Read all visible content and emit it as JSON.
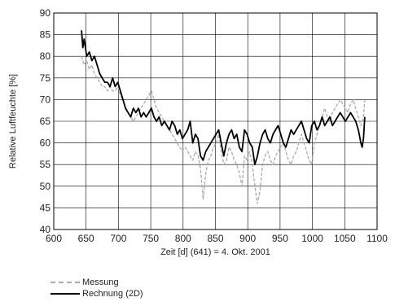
{
  "chart_data": {
    "type": "line",
    "xlabel": "Zeit [d] (641) = 4. Okt. 2001",
    "ylabel": "Relative Luftfeuchte [%]",
    "xlim": [
      600,
      1100
    ],
    "ylim": [
      40,
      90
    ],
    "x_ticks": [
      "600",
      "650",
      "700",
      "750",
      "800",
      "850",
      "900",
      "950",
      "1000",
      "1050",
      "1100"
    ],
    "y_ticks": [
      "40",
      "45",
      "50",
      "55",
      "60",
      "65",
      "70",
      "75",
      "80",
      "85",
      "90"
    ],
    "grid": true,
    "legend_position": "bottom-left",
    "series": [
      {
        "name": "Messung",
        "color": "#aaaaaa",
        "style": "dashed",
        "x": [
          643,
          647,
          651,
          655,
          659,
          663,
          667,
          671,
          675,
          679,
          683,
          687,
          691,
          695,
          699,
          703,
          707,
          711,
          715,
          719,
          723,
          727,
          731,
          735,
          739,
          743,
          747,
          751,
          755,
          759,
          763,
          767,
          771,
          775,
          779,
          783,
          787,
          791,
          795,
          799,
          803,
          807,
          811,
          815,
          819,
          823,
          827,
          831,
          835,
          839,
          843,
          847,
          851,
          855,
          859,
          863,
          867,
          871,
          875,
          879,
          883,
          887,
          891,
          895,
          899,
          903,
          907,
          911,
          915,
          919,
          923,
          927,
          931,
          935,
          939,
          943,
          947,
          951,
          955,
          959,
          963,
          967,
          971,
          975,
          979,
          983,
          987,
          991,
          995,
          999,
          1003,
          1007,
          1011,
          1015,
          1019,
          1023,
          1027,
          1031,
          1035,
          1039,
          1043,
          1047,
          1051,
          1055,
          1059,
          1063,
          1067,
          1071,
          1075,
          1079,
          1081
        ],
        "y": [
          80,
          78,
          79,
          77,
          78,
          76,
          75,
          74,
          73,
          73,
          72,
          73,
          72,
          72,
          73,
          71,
          70,
          68,
          67,
          66,
          65,
          66,
          67,
          68,
          69,
          70,
          71,
          72,
          70,
          68,
          67,
          66,
          65,
          64,
          63,
          62,
          61,
          60,
          59,
          58,
          59,
          58,
          57,
          56,
          58,
          57,
          54,
          47,
          53,
          56,
          57,
          59,
          60,
          62,
          58,
          55,
          56,
          59,
          58,
          56,
          55,
          53,
          50,
          57,
          56,
          58,
          55,
          50,
          46,
          49,
          55,
          57,
          58,
          56,
          55,
          57,
          58,
          59,
          60,
          58,
          56,
          55,
          57,
          58,
          60,
          62,
          60,
          58,
          56,
          55,
          60,
          62,
          64,
          66,
          68,
          66,
          65,
          67,
          68,
          69,
          70,
          69,
          68,
          67,
          69,
          70,
          68,
          66,
          64,
          66,
          70
        ]
      },
      {
        "name": "Rechnung (2D)",
        "color": "#000000",
        "style": "solid",
        "x": [
          643,
          645,
          647,
          651,
          655,
          659,
          663,
          667,
          671,
          675,
          679,
          683,
          687,
          691,
          695,
          699,
          703,
          707,
          711,
          715,
          719,
          723,
          727,
          731,
          735,
          739,
          743,
          747,
          751,
          755,
          759,
          763,
          767,
          771,
          775,
          779,
          783,
          787,
          791,
          795,
          799,
          803,
          807,
          811,
          815,
          819,
          823,
          827,
          831,
          835,
          839,
          843,
          847,
          851,
          855,
          859,
          863,
          867,
          871,
          875,
          879,
          883,
          887,
          891,
          895,
          899,
          903,
          907,
          911,
          915,
          919,
          923,
          927,
          931,
          935,
          939,
          943,
          947,
          951,
          955,
          959,
          963,
          967,
          971,
          975,
          979,
          983,
          987,
          991,
          995,
          999,
          1003,
          1007,
          1011,
          1015,
          1019,
          1023,
          1027,
          1031,
          1035,
          1039,
          1043,
          1047,
          1051,
          1055,
          1059,
          1063,
          1067,
          1071,
          1075,
          1077,
          1079,
          1081
        ],
        "y": [
          86,
          82,
          84,
          80,
          81,
          79,
          80,
          78,
          76,
          75,
          74,
          74,
          73,
          75,
          73,
          74,
          72,
          70,
          68,
          67,
          66,
          68,
          67,
          68,
          66,
          67,
          66,
          67,
          68,
          66,
          65,
          66,
          64,
          65,
          64,
          63,
          65,
          64,
          62,
          63,
          61,
          62,
          63,
          65,
          60,
          62,
          61,
          57,
          56,
          58,
          59,
          60,
          61,
          62,
          63,
          60,
          57,
          60,
          62,
          63,
          61,
          62,
          59,
          58,
          63,
          62,
          60,
          59,
          55,
          57,
          60,
          62,
          63,
          61,
          60,
          62,
          63,
          64,
          62,
          60,
          59,
          61,
          63,
          62,
          63,
          64,
          65,
          63,
          61,
          60,
          64,
          65,
          63,
          64,
          66,
          64,
          65,
          66,
          64,
          65,
          66,
          67,
          66,
          65,
          66,
          67,
          66,
          65,
          63,
          60,
          59,
          61,
          66
        ]
      }
    ]
  }
}
